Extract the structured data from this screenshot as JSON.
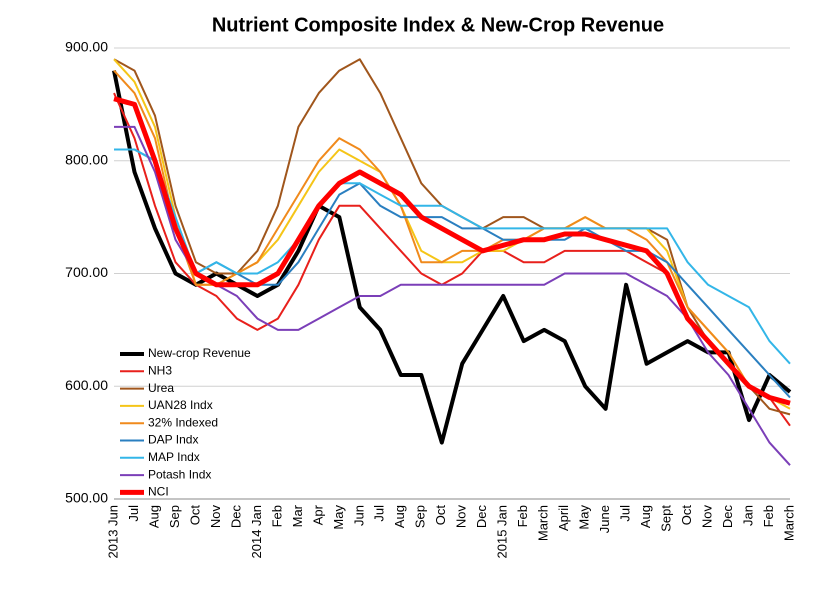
{
  "chart_data": {
    "type": "line",
    "title": "Nutrient Composite Index & New-Crop Revenue",
    "categories": [
      "2013 Jun",
      "Jul",
      "Aug",
      "Sep",
      "Oct",
      "Nov",
      "Dec",
      "2014 Jan",
      "Feb",
      "Mar",
      "Apr",
      "May",
      "Jun",
      "Jul",
      "Aug",
      "Sep",
      "Oct",
      "Nov",
      "Dec",
      "2015 Jan",
      "Feb",
      "March",
      "April",
      "May",
      "June",
      "Jul",
      "Aug",
      "Sept",
      "Oct",
      "Nov",
      "Dec",
      "Jan",
      "Feb",
      "March"
    ],
    "ylim": [
      500,
      900
    ],
    "yticks": [
      {
        "value": 500,
        "label": "500.00"
      },
      {
        "value": 600,
        "label": "600.00"
      },
      {
        "value": 700,
        "label": "700.00"
      },
      {
        "value": 800,
        "label": "800.00"
      },
      {
        "value": 900,
        "label": "900.00"
      }
    ],
    "grid": true,
    "legend": "lower-left",
    "series": [
      {
        "name": "New-crop Revenue",
        "color": "#000000",
        "width": 4,
        "values": [
          880,
          790,
          740,
          700,
          690,
          700,
          690,
          680,
          690,
          720,
          760,
          750,
          670,
          650,
          610,
          610,
          550,
          620,
          650,
          680,
          640,
          650,
          640,
          600,
          580,
          690,
          620,
          630,
          640,
          630,
          630,
          570,
          610,
          595
        ]
      },
      {
        "name": "NH3",
        "color": "#e8201c",
        "width": 2,
        "values": [
          860,
          820,
          760,
          710,
          690,
          680,
          660,
          650,
          660,
          690,
          730,
          760,
          760,
          740,
          720,
          700,
          690,
          700,
          720,
          720,
          710,
          710,
          720,
          720,
          720,
          720,
          710,
          700,
          660,
          640,
          620,
          600,
          590,
          565
        ]
      },
      {
        "name": "Urea",
        "color": "#a0561c",
        "width": 2,
        "values": [
          890,
          880,
          840,
          760,
          710,
          700,
          700,
          720,
          760,
          830,
          860,
          880,
          890,
          860,
          820,
          780,
          760,
          750,
          740,
          750,
          750,
          740,
          740,
          740,
          740,
          740,
          740,
          730,
          670,
          640,
          620,
          600,
          580,
          575
        ]
      },
      {
        "name": "UAN28 Indx",
        "color": "#f5c518",
        "width": 2,
        "values": [
          890,
          870,
          830,
          750,
          690,
          690,
          700,
          710,
          730,
          760,
          790,
          810,
          800,
          790,
          760,
          720,
          710,
          710,
          720,
          720,
          730,
          740,
          740,
          750,
          740,
          740,
          740,
          720,
          670,
          650,
          630,
          600,
          590,
          580
        ]
      },
      {
        "name": "32% Indexed",
        "color": "#f08a1c",
        "width": 2,
        "values": [
          880,
          860,
          820,
          740,
          690,
          690,
          700,
          710,
          740,
          770,
          800,
          820,
          810,
          790,
          760,
          710,
          710,
          720,
          720,
          730,
          730,
          740,
          740,
          750,
          740,
          740,
          730,
          710,
          670,
          650,
          630,
          600,
          590,
          585
        ]
      },
      {
        "name": "DAP Indx",
        "color": "#2a7fc0",
        "width": 2,
        "values": [
          810,
          810,
          800,
          740,
          700,
          710,
          700,
          690,
          690,
          710,
          740,
          770,
          780,
          760,
          750,
          750,
          750,
          740,
          740,
          730,
          730,
          730,
          730,
          740,
          730,
          720,
          720,
          710,
          690,
          670,
          650,
          630,
          610,
          590
        ]
      },
      {
        "name": "MAP Indx",
        "color": "#33b6e8",
        "width": 2,
        "values": [
          810,
          810,
          800,
          750,
          700,
          710,
          700,
          700,
          710,
          730,
          760,
          780,
          780,
          770,
          760,
          760,
          760,
          750,
          740,
          740,
          740,
          740,
          740,
          740,
          740,
          740,
          740,
          740,
          710,
          690,
          680,
          670,
          640,
          620
        ]
      },
      {
        "name": "Potash Indx",
        "color": "#7b3fb8",
        "width": 2,
        "values": [
          830,
          830,
          790,
          730,
          700,
          690,
          680,
          660,
          650,
          650,
          660,
          670,
          680,
          680,
          690,
          690,
          690,
          690,
          690,
          690,
          690,
          690,
          700,
          700,
          700,
          700,
          690,
          680,
          660,
          630,
          610,
          580,
          550,
          530
        ]
      },
      {
        "name": "NCI",
        "color": "#ff0000",
        "width": 5,
        "values": [
          855,
          850,
          800,
          740,
          700,
          690,
          690,
          690,
          700,
          730,
          760,
          780,
          790,
          780,
          770,
          750,
          740,
          730,
          720,
          725,
          730,
          730,
          735,
          735,
          730,
          725,
          720,
          700,
          660,
          640,
          620,
          600,
          590,
          585
        ]
      }
    ]
  }
}
